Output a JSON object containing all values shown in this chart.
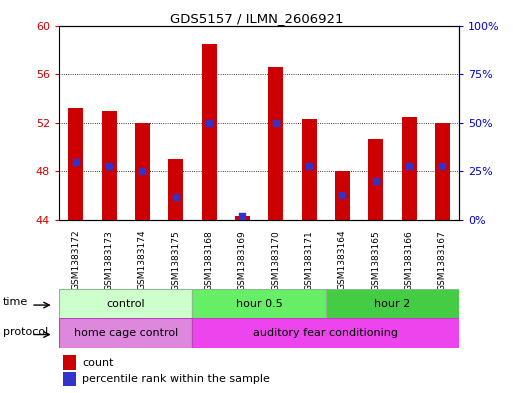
{
  "title": "GDS5157 / ILMN_2606921",
  "samples": [
    "GSM1383172",
    "GSM1383173",
    "GSM1383174",
    "GSM1383175",
    "GSM1383168",
    "GSM1383169",
    "GSM1383170",
    "GSM1383171",
    "GSM1383164",
    "GSM1383165",
    "GSM1383166",
    "GSM1383167"
  ],
  "counts": [
    53.2,
    53.0,
    52.0,
    49.0,
    58.5,
    44.3,
    56.6,
    52.3,
    48.0,
    50.7,
    52.5,
    52.0
  ],
  "percentile_ranks": [
    30,
    28,
    25,
    12,
    50,
    2,
    50,
    28,
    13,
    20,
    28,
    28
  ],
  "ylim_left": [
    44,
    60
  ],
  "ylim_right": [
    0,
    100
  ],
  "yticks_left": [
    44,
    48,
    52,
    56,
    60
  ],
  "yticks_right": [
    0,
    25,
    50,
    75,
    100
  ],
  "bar_color": "#cc0000",
  "dot_color": "#3333cc",
  "bar_width": 0.45,
  "time_groups": [
    {
      "label": "control",
      "start": 0,
      "end": 4,
      "color": "#ccffcc"
    },
    {
      "label": "hour 0.5",
      "start": 4,
      "end": 8,
      "color": "#66ee66"
    },
    {
      "label": "hour 2",
      "start": 8,
      "end": 12,
      "color": "#44cc44"
    }
  ],
  "protocol_groups": [
    {
      "label": "home cage control",
      "start": 0,
      "end": 4,
      "color": "#dd88dd"
    },
    {
      "label": "auditory fear conditioning",
      "start": 4,
      "end": 12,
      "color": "#ee44ee"
    }
  ],
  "time_label": "time",
  "protocol_label": "protocol",
  "legend_count_color": "#cc0000",
  "legend_dot_color": "#3333cc",
  "left_tick_color": "#cc0000",
  "right_tick_color": "#0000cc",
  "background_color": "#ffffff"
}
